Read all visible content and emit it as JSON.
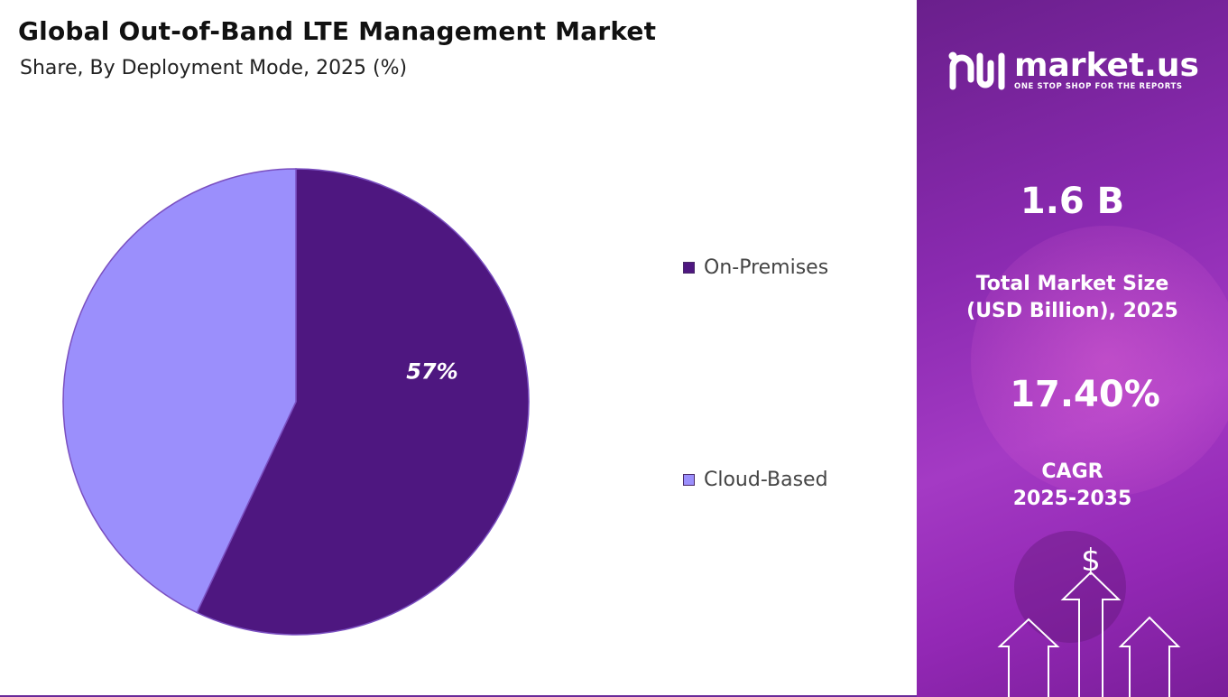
{
  "title": "Global Out-of-Band LTE Management Market",
  "subtitle": "Share, By Deployment Mode, 2025 (%)",
  "chart_data": {
    "type": "pie",
    "categories": [
      "On-Premises",
      "Cloud-Based"
    ],
    "values": [
      57,
      43
    ],
    "data_labels": [
      "57%",
      ""
    ],
    "colors": [
      "#4e1780",
      "#9b8ffc"
    ],
    "legend_position": "right"
  },
  "brand": {
    "name": "market.us",
    "tagline": "ONE STOP SHOP FOR THE REPORTS"
  },
  "stats": {
    "market_size_value": "1.6 B",
    "market_size_label_line1": "Total Market Size",
    "market_size_label_line2": "(USD Billion), 2025",
    "cagr_value": "17.40%",
    "cagr_label_line1": "CAGR",
    "cagr_label_line2": "2025-2035",
    "currency_symbol": "$"
  }
}
